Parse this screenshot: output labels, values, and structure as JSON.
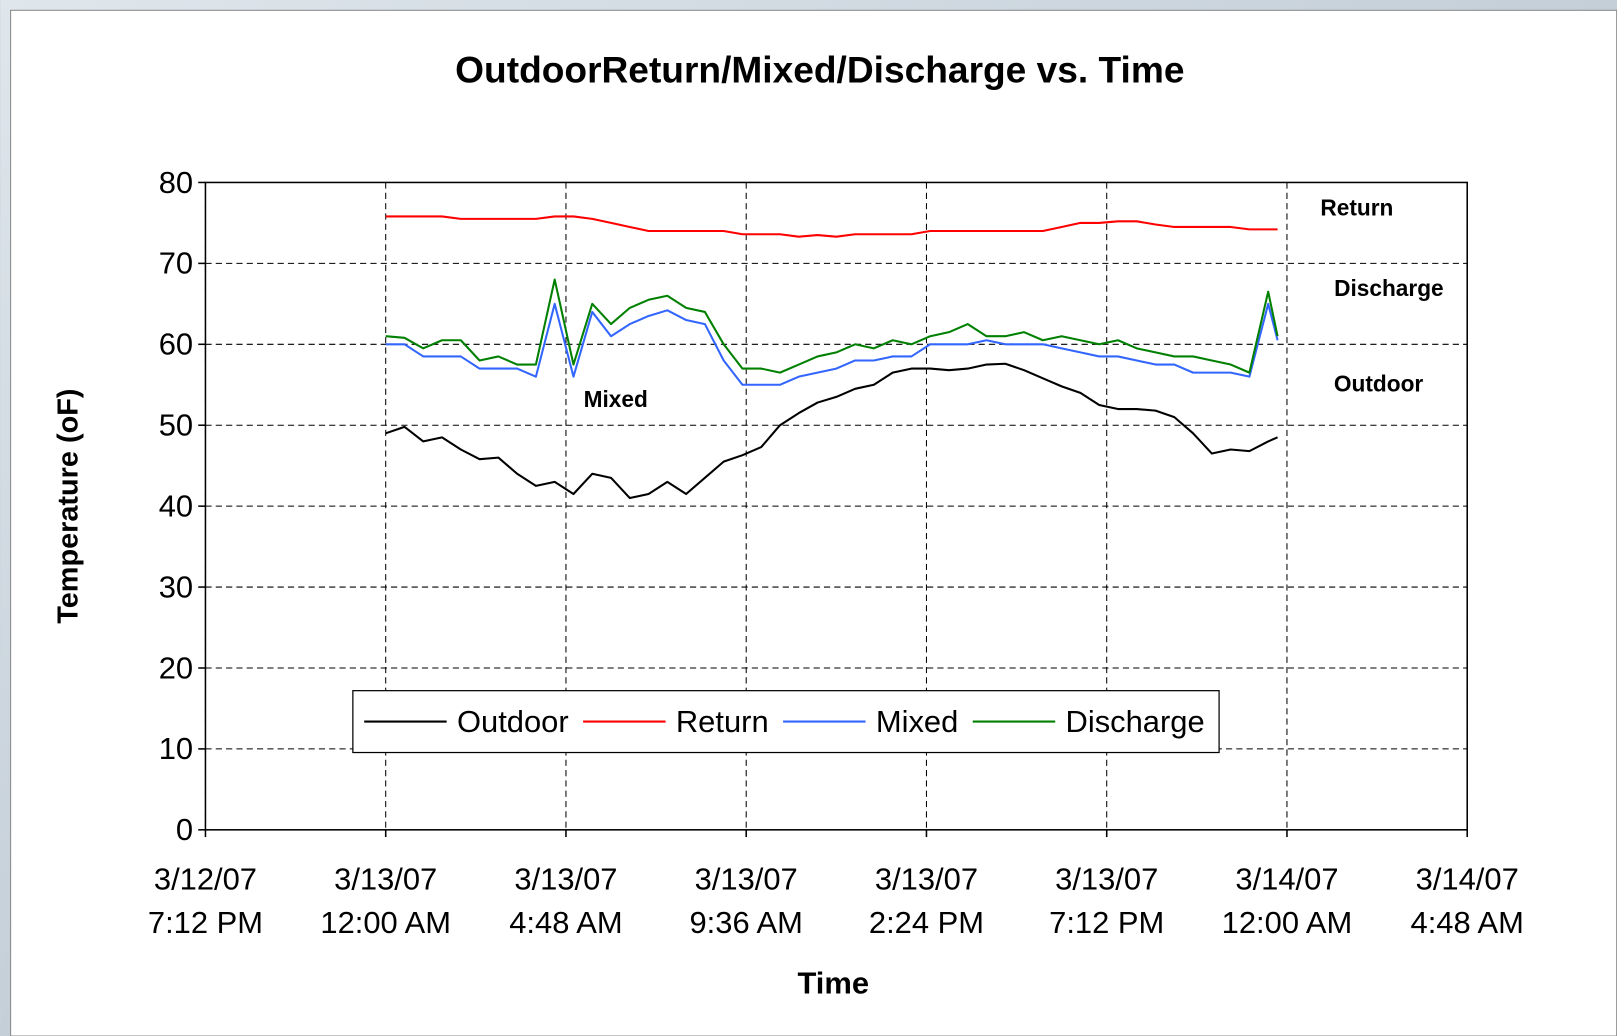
{
  "chart_data": {
    "type": "line",
    "title": "OutdoorReturn/Mixed/Discharge vs. Time",
    "x_label": "Time",
    "y_label": "Temperature (oF)",
    "x": [
      "2007-03-13T00:00",
      "2007-03-13T00:30",
      "2007-03-13T01:00",
      "2007-03-13T01:30",
      "2007-03-13T02:00",
      "2007-03-13T02:30",
      "2007-03-13T03:00",
      "2007-03-13T03:30",
      "2007-03-13T04:00",
      "2007-03-13T04:30",
      "2007-03-13T05:00",
      "2007-03-13T05:30",
      "2007-03-13T06:00",
      "2007-03-13T06:30",
      "2007-03-13T07:00",
      "2007-03-13T07:30",
      "2007-03-13T08:00",
      "2007-03-13T08:30",
      "2007-03-13T09:00",
      "2007-03-13T09:30",
      "2007-03-13T10:00",
      "2007-03-13T10:30",
      "2007-03-13T11:00",
      "2007-03-13T11:30",
      "2007-03-13T12:00",
      "2007-03-13T12:30",
      "2007-03-13T13:00",
      "2007-03-13T13:30",
      "2007-03-13T14:00",
      "2007-03-13T14:30",
      "2007-03-13T15:00",
      "2007-03-13T15:30",
      "2007-03-13T16:00",
      "2007-03-13T16:30",
      "2007-03-13T17:00",
      "2007-03-13T17:30",
      "2007-03-13T18:00",
      "2007-03-13T18:30",
      "2007-03-13T19:00",
      "2007-03-13T19:30",
      "2007-03-13T20:00",
      "2007-03-13T20:30",
      "2007-03-13T21:00",
      "2007-03-13T21:30",
      "2007-03-13T22:00",
      "2007-03-13T22:30",
      "2007-03-13T23:00",
      "2007-03-13T23:30",
      "2007-03-13T23:45"
    ],
    "series": [
      {
        "name": "Outdoor",
        "color": "#000000",
        "values": [
          49,
          49.8,
          48,
          48.5,
          47,
          45.8,
          46,
          44,
          42.5,
          43,
          41.5,
          44,
          43.5,
          41,
          41.5,
          43,
          41.5,
          43.5,
          45.5,
          46.3,
          47.3,
          50,
          51.5,
          52.8,
          53.5,
          54.5,
          55,
          56.5,
          57,
          57,
          56.8,
          57,
          57.5,
          57.6,
          56.8,
          55.8,
          54.8,
          54,
          52.5,
          52,
          52,
          51.8,
          51,
          49,
          46.5,
          47,
          46.8,
          48,
          48.5
        ]
      },
      {
        "name": "Return",
        "color": "#ff0000",
        "values": [
          75.8,
          75.8,
          75.8,
          75.8,
          75.5,
          75.5,
          75.5,
          75.5,
          75.5,
          75.8,
          75.8,
          75.5,
          75,
          74.5,
          74,
          74,
          74,
          74,
          74,
          73.6,
          73.6,
          73.6,
          73.3,
          73.5,
          73.3,
          73.6,
          73.6,
          73.6,
          73.6,
          74,
          74,
          74,
          74,
          74,
          74,
          74,
          74.5,
          75,
          75,
          75.2,
          75.2,
          74.8,
          74.5,
          74.5,
          74.5,
          74.5,
          74.2,
          74.2,
          74.2
        ]
      },
      {
        "name": "Mixed",
        "color": "#3366ff",
        "values": [
          60,
          60,
          58.5,
          58.5,
          58.5,
          57,
          57,
          57,
          56,
          65,
          56,
          64,
          61,
          62.5,
          63.5,
          64.2,
          63,
          62.5,
          58,
          55,
          55,
          55,
          56,
          56.5,
          57,
          58,
          58,
          58.5,
          58.5,
          60,
          60,
          60,
          60.5,
          60,
          60,
          60,
          59.5,
          59,
          58.5,
          58.5,
          58,
          57.5,
          57.5,
          56.5,
          56.5,
          56.5,
          56,
          65,
          60.5
        ]
      },
      {
        "name": "Discharge",
        "color": "#008000",
        "values": [
          61,
          60.8,
          59.5,
          60.5,
          60.5,
          58,
          58.5,
          57.5,
          57.5,
          68,
          57.5,
          65,
          62.5,
          64.5,
          65.5,
          66,
          64.5,
          64,
          60,
          57,
          57,
          56.5,
          57.5,
          58.5,
          59,
          60,
          59.5,
          60.5,
          60,
          61,
          61.5,
          62.5,
          61,
          61,
          61.5,
          60.5,
          61,
          60.5,
          60,
          60.5,
          59.5,
          59,
          58.5,
          58.5,
          58,
          57.5,
          56.5,
          66.5,
          61
        ]
      }
    ],
    "xlim": [
      "2007-03-12T19:12",
      "2007-03-14T04:48"
    ],
    "xticks": [
      {
        "value": "2007-03-12T19:12",
        "label": "3/12/07\n7:12 PM"
      },
      {
        "value": "2007-03-13T00:00",
        "label": "3/13/07\n12:00 AM"
      },
      {
        "value": "2007-03-13T04:48",
        "label": "3/13/07\n4:48 AM"
      },
      {
        "value": "2007-03-13T09:36",
        "label": "3/13/07\n9:36 AM"
      },
      {
        "value": "2007-03-13T14:24",
        "label": "3/13/07\n2:24 PM"
      },
      {
        "value": "2007-03-13T19:12",
        "label": "3/13/07\n7:12 PM"
      },
      {
        "value": "2007-03-14T00:00",
        "label": "3/14/07\n12:00 AM"
      },
      {
        "value": "2007-03-14T04:48",
        "label": "3/14/07\n4:48 AM"
      }
    ],
    "ylim": [
      0,
      80
    ],
    "yticks": [
      0,
      10,
      20,
      30,
      40,
      50,
      60,
      70,
      80
    ],
    "grid": true,
    "legend": "bottom",
    "annotations": [
      {
        "text": "Return"
      },
      {
        "text": "Discharge"
      },
      {
        "text": "Outdoor"
      },
      {
        "text": "Mixed"
      }
    ]
  }
}
